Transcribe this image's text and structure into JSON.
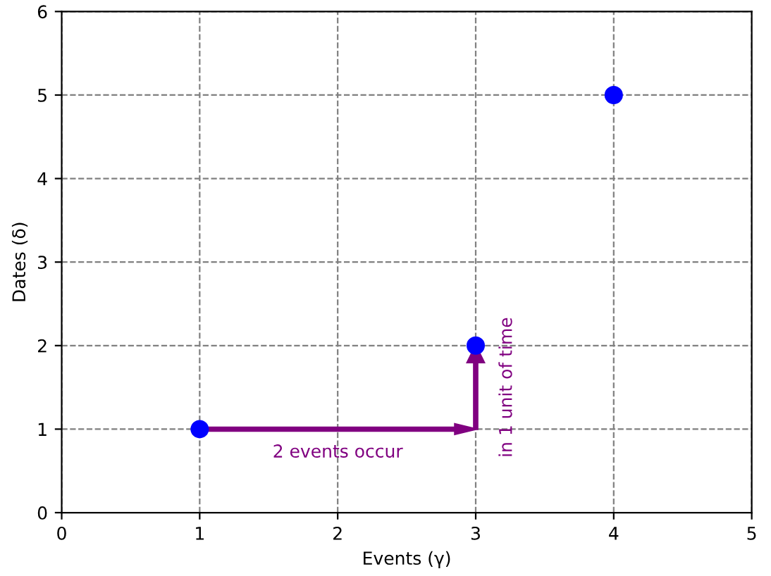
{
  "chart_data": {
    "type": "scatter",
    "xlabel": "Events (γ)",
    "ylabel": "Dates (δ)",
    "x": [
      1,
      3,
      4
    ],
    "series": [
      {
        "color": "#0000ff",
        "values": [
          1,
          2,
          5
        ]
      }
    ],
    "marker": "circle",
    "xlim": [
      0,
      5
    ],
    "ylim": [
      0,
      6
    ],
    "xticks": [
      0,
      1,
      2,
      3,
      4,
      5
    ],
    "yticks": [
      0,
      1,
      2,
      3,
      4,
      5,
      6
    ],
    "grid": true,
    "annotations": [
      "2 events occur",
      "in 1 unit of time"
    ]
  }
}
